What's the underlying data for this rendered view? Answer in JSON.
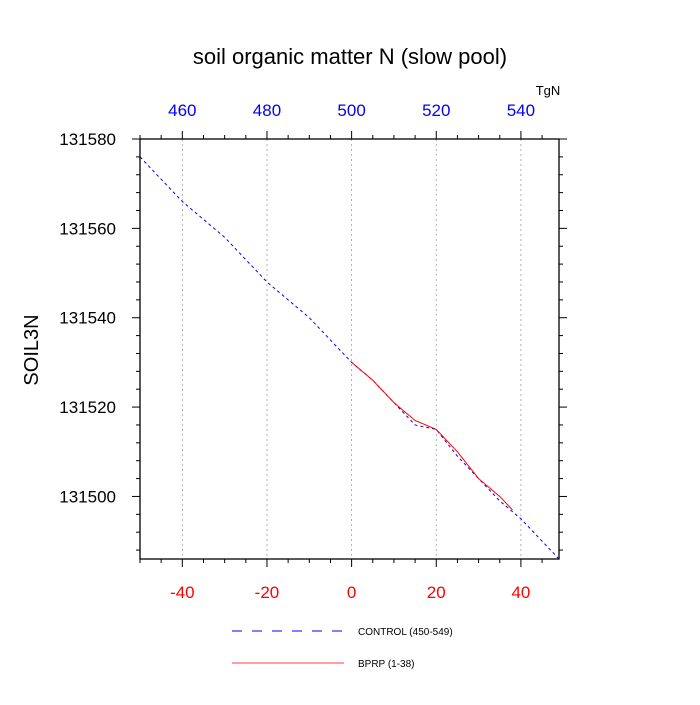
{
  "chart_data": {
    "type": "line",
    "title": "soil organic matter N (slow pool)",
    "ylabel": "SOIL3N",
    "top_axis_unit": "TgN",
    "xlim": [
      -50,
      49
    ],
    "ylim": [
      131486,
      131580
    ],
    "bottom_axis": {
      "ticks": [
        -40,
        -20,
        0,
        20,
        40
      ],
      "labels": [
        "-40",
        "-20",
        "0",
        "20",
        "40"
      ],
      "color": "#ff0000"
    },
    "top_axis": {
      "ticks": [
        -40,
        -20,
        0,
        20,
        40
      ],
      "labels": [
        "460",
        "480",
        "500",
        "520",
        "540"
      ],
      "color": "#0000ff"
    },
    "y_axis": {
      "ticks": [
        131500,
        131520,
        131540,
        131560,
        131580
      ],
      "labels": [
        "131500",
        "131520",
        "131540",
        "131560",
        "131580"
      ]
    },
    "grid": "vertical dotted lines at major x ticks",
    "legend_position": "bottom-center",
    "series": [
      {
        "name": "CONTROL (450-549)",
        "color": "#0000ff",
        "dash": "dashed",
        "x": [
          -50,
          -45,
          -40,
          -35,
          -30,
          -25,
          -20,
          -15,
          -10,
          -5,
          0,
          5,
          10,
          15,
          20,
          25,
          30,
          35,
          40,
          45,
          49
        ],
        "y": [
          131576,
          131571,
          131566,
          131562,
          131558,
          131553,
          131548,
          131544,
          131540,
          131535,
          131530,
          131526,
          131521,
          131516,
          131515,
          131509,
          131504,
          131499,
          131495,
          131490,
          131486
        ]
      },
      {
        "name": "BPRP (1-38)",
        "color": "#ff0000",
        "dash": "solid",
        "x": [
          0,
          5,
          10,
          15,
          20,
          25,
          30,
          35,
          38
        ],
        "y": [
          131530,
          131526,
          131521,
          131517,
          131515,
          131510,
          131504,
          131500,
          131497
        ]
      }
    ]
  }
}
